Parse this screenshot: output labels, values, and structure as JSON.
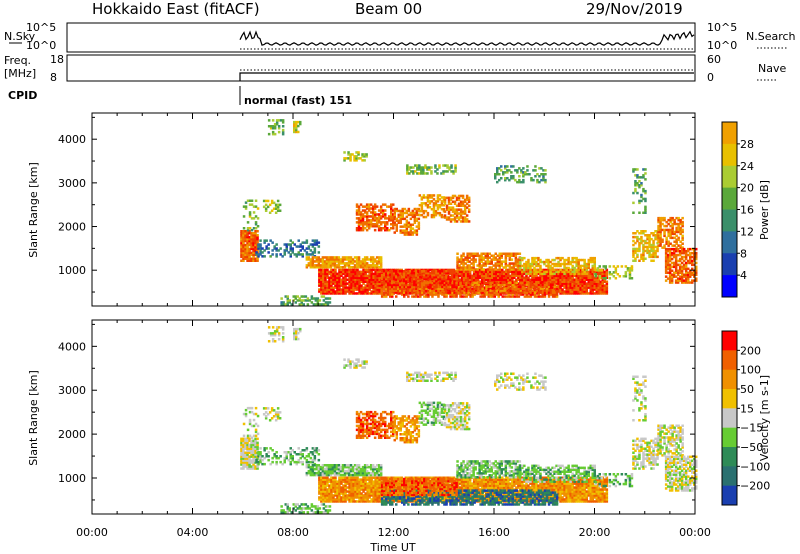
{
  "header": {
    "station": "Hokkaido East (fitACF)",
    "beam": "Beam 00",
    "date": "29/Nov/2019"
  },
  "noise_panel": {
    "left_label": "N.Sky",
    "right_label": "N.Search",
    "left_ticks": [
      "10^5",
      "10^0"
    ],
    "right_ticks": [
      "10^5",
      "10^0"
    ]
  },
  "freq_panel": {
    "left_label_1": "Freq.",
    "left_label_2": "[MHz]",
    "right_label": "Nave",
    "left_ticks": [
      "18",
      "8"
    ],
    "right_ticks": [
      "60",
      "0"
    ]
  },
  "cpid": {
    "label": "CPID",
    "program": "normal (fast) 151"
  },
  "colors": {
    "power": [
      "#0000ff",
      "#1a3fb0",
      "#2f6f9e",
      "#3a8f6a",
      "#5aa83a",
      "#aacc33",
      "#e8c000",
      "#f0a000",
      "#f07000",
      "#f04000",
      "#ff0000"
    ],
    "velocity": [
      "#1a3fb0",
      "#2a7070",
      "#2e8b57",
      "#66cc33",
      "#c8c8c8",
      "#f0c000",
      "#f09000",
      "#f06000",
      "#ff0000"
    ],
    "ground_scatter": "#c0c0c0"
  },
  "chart_data": [
    {
      "type": "heatmap",
      "name": "power",
      "ylabel": "Slant Range [km]",
      "xlim_hours": [
        0,
        24
      ],
      "ylim_km": [
        180,
        4600
      ],
      "yticks": [
        1000,
        2000,
        3000,
        4000
      ],
      "ytick_labels": [
        "1000",
        "2000",
        "3000",
        "4000"
      ],
      "colorbar": {
        "label": "Power [dB]",
        "range": [
          0,
          32
        ],
        "ticks": [
          4,
          8,
          12,
          16,
          20,
          24,
          28
        ],
        "tick_labels": [
          "4",
          "8",
          "12",
          "16",
          "20",
          "24",
          "28"
        ]
      }
    },
    {
      "type": "heatmap",
      "name": "velocity",
      "ylabel": "Slant Range [km]",
      "xlabel": "Time UT",
      "xlim_hours": [
        0,
        24
      ],
      "ylim_km": [
        180,
        4600
      ],
      "yticks": [
        1000,
        2000,
        3000,
        4000
      ],
      "ytick_labels": [
        "1000",
        "2000",
        "3000",
        "4000"
      ],
      "xticks_hours": [
        0,
        4,
        8,
        12,
        16,
        20,
        24
      ],
      "xtick_labels": [
        "00:00",
        "04:00",
        "08:00",
        "12:00",
        "16:00",
        "20:00",
        "00:00"
      ],
      "colorbar": {
        "label": "Velocity [m s-1]",
        "ticks": [
          200,
          100,
          50,
          15,
          -15,
          -50,
          -100,
          -200
        ],
        "tick_labels": [
          "200",
          "100",
          "50",
          "15",
          "−15",
          "−50",
          "−100",
          "−200"
        ]
      }
    }
  ]
}
